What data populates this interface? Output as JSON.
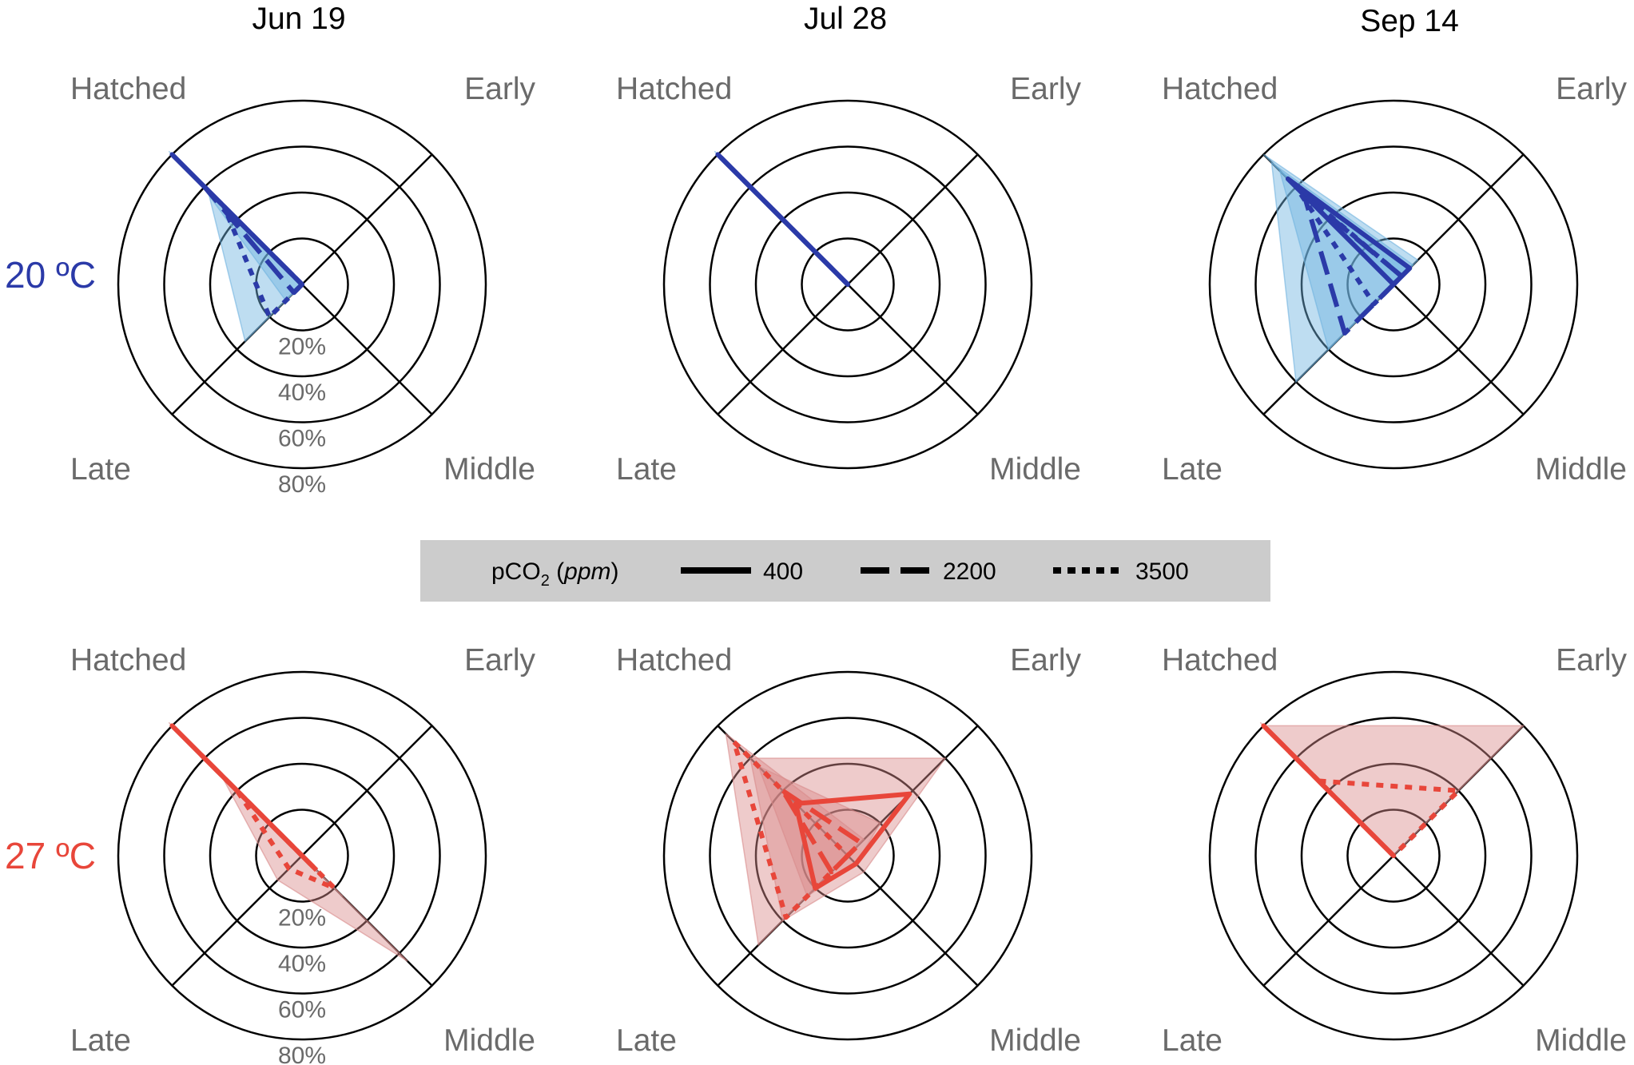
{
  "legend": {
    "title_prefix": "pCO",
    "title_sub": "2",
    "title_unit": "ppm",
    "entries": [
      {
        "label": "400",
        "style": "solid"
      },
      {
        "label": "2200",
        "style": "dashed"
      },
      {
        "label": "3500",
        "style": "dotted"
      }
    ]
  },
  "axes": [
    "Hatched",
    "Early",
    "Middle",
    "Late"
  ],
  "ring_labels": [
    "20%",
    "40%",
    "60%",
    "80%"
  ],
  "colors": {
    "20 ºC": "#2b3aa8",
    "27 ºC": "#e8463a",
    "fill_20": "#6fb3e0",
    "fill_27": "#d98b8b",
    "text_gray": "#6a6a6a"
  },
  "chart_data": [
    {
      "type": "radar",
      "row": "20 ºC",
      "title": "Jun 19",
      "axes": [
        "Hatched",
        "Early",
        "Middle",
        "Late"
      ],
      "rlim": [
        0,
        80
      ],
      "series": [
        {
          "name": "400",
          "values": [
            80,
            0,
            0,
            0
          ],
          "band": {
            "lo": [
              78,
              0,
              0,
              0
            ],
            "hi": [
              82,
              0,
              0,
              0
            ]
          }
        },
        {
          "name": "2200",
          "values": [
            60,
            0,
            0,
            5
          ],
          "band": {
            "lo": [
              52,
              0,
              0,
              0
            ],
            "hi": [
              64,
              0,
              0,
              10
            ]
          }
        },
        {
          "name": "3500",
          "values": [
            48,
            0,
            0,
            20
          ],
          "band": {
            "lo": [
              42,
              0,
              0,
              5
            ],
            "hi": [
              58,
              0,
              0,
              35
            ]
          }
        }
      ]
    },
    {
      "type": "radar",
      "row": "20 ºC",
      "title": "Jul 28",
      "axes": [
        "Hatched",
        "Early",
        "Middle",
        "Late"
      ],
      "rlim": [
        0,
        80
      ],
      "series": [
        {
          "name": "400",
          "values": [
            80,
            0,
            0,
            0
          ],
          "band": {
            "lo": [
              78,
              0,
              0,
              0
            ],
            "hi": [
              82,
              0,
              0,
              0
            ]
          }
        },
        {
          "name": "2200",
          "values": [
            78,
            0,
            0,
            0
          ],
          "band": {
            "lo": [
              75,
              0,
              0,
              0
            ],
            "hi": [
              80,
              0,
              0,
              0
            ]
          }
        },
        {
          "name": "3500",
          "values": [
            78,
            0,
            0,
            0
          ],
          "band": {
            "lo": [
              74,
              0,
              0,
              0
            ],
            "hi": [
              80,
              0,
              0,
              0
            ]
          }
        }
      ]
    },
    {
      "type": "radar",
      "row": "20 ºC",
      "title": "Sep 14",
      "axes": [
        "Hatched",
        "Early",
        "Middle",
        "Late"
      ],
      "rlim": [
        0,
        80
      ],
      "series": [
        {
          "name": "400",
          "values": [
            65,
            10,
            0,
            0
          ],
          "band": {
            "lo": [
              60,
              8,
              0,
              0
            ],
            "hi": [
              80,
              15,
              0,
              0
            ]
          }
        },
        {
          "name": "2200",
          "values": [
            55,
            5,
            0,
            30
          ],
          "band": {
            "lo": [
              40,
              3,
              0,
              20
            ],
            "hi": [
              70,
              10,
              0,
              40
            ]
          }
        },
        {
          "name": "3500",
          "values": [
            60,
            5,
            0,
            12
          ],
          "band": {
            "lo": [
              50,
              0,
              0,
              5
            ],
            "hi": [
              75,
              12,
              0,
              60
            ]
          }
        }
      ]
    },
    {
      "type": "radar",
      "row": "27 ºC",
      "title": "Jun 19",
      "axes": [
        "Hatched",
        "Early",
        "Middle",
        "Late"
      ],
      "rlim": [
        0,
        80
      ],
      "series": [
        {
          "name": "400",
          "values": [
            80,
            0,
            5,
            0
          ],
          "band": {
            "lo": [
              75,
              0,
              0,
              0
            ],
            "hi": [
              82,
              0,
              10,
              0
            ]
          }
        },
        {
          "name": "2200",
          "values": [
            62,
            0,
            10,
            0
          ],
          "band": {
            "lo": [
              50,
              0,
              5,
              0
            ],
            "hi": [
              70,
              0,
              25,
              0
            ]
          }
        },
        {
          "name": "3500",
          "values": [
            40,
            0,
            20,
            8
          ],
          "band": {
            "lo": [
              30,
              0,
              10,
              0
            ],
            "hi": [
              50,
              0,
              65,
              15
            ]
          }
        }
      ]
    },
    {
      "type": "radar",
      "row": "27 ºC",
      "title": "Jul 28",
      "axes": [
        "Hatched",
        "Early",
        "Middle",
        "Late"
      ],
      "rlim": [
        0,
        80
      ],
      "series": [
        {
          "name": "400",
          "values": [
            32,
            38,
            5,
            20
          ],
          "band": {
            "lo": [
              25,
              25,
              0,
              10
            ],
            "hi": [
              60,
              60,
              10,
              40
            ]
          }
        },
        {
          "name": "2200",
          "values": [
            40,
            8,
            0,
            10
          ],
          "band": {
            "lo": [
              30,
              0,
              0,
              5
            ],
            "hi": [
              55,
              20,
              5,
              25
            ]
          }
        },
        {
          "name": "3500",
          "values": [
            70,
            0,
            0,
            38
          ],
          "band": {
            "lo": [
              55,
              0,
              0,
              20
            ],
            "hi": [
              75,
              10,
              0,
              55
            ]
          }
        }
      ]
    },
    {
      "type": "radar",
      "row": "27 ºC",
      "title": "Sep 14",
      "axes": [
        "Hatched",
        "Early",
        "Middle",
        "Late"
      ],
      "rlim": [
        0,
        80
      ],
      "series": [
        {
          "name": "400",
          "values": [
            80,
            0,
            0,
            0
          ],
          "band": {
            "lo": [
              75,
              0,
              0,
              0
            ],
            "hi": [
              82,
              0,
              0,
              0
            ]
          }
        },
        {
          "name": "2200",
          "values": [
            78,
            0,
            0,
            0
          ],
          "band": {
            "lo": [
              72,
              0,
              0,
              0
            ],
            "hi": [
              80,
              0,
              0,
              0
            ]
          }
        },
        {
          "name": "3500",
          "values": [
            46,
            40,
            0,
            0
          ],
          "band": {
            "lo": [
              30,
              20,
              0,
              0
            ],
            "hi": [
              80,
              80,
              0,
              0
            ]
          }
        }
      ]
    }
  ]
}
